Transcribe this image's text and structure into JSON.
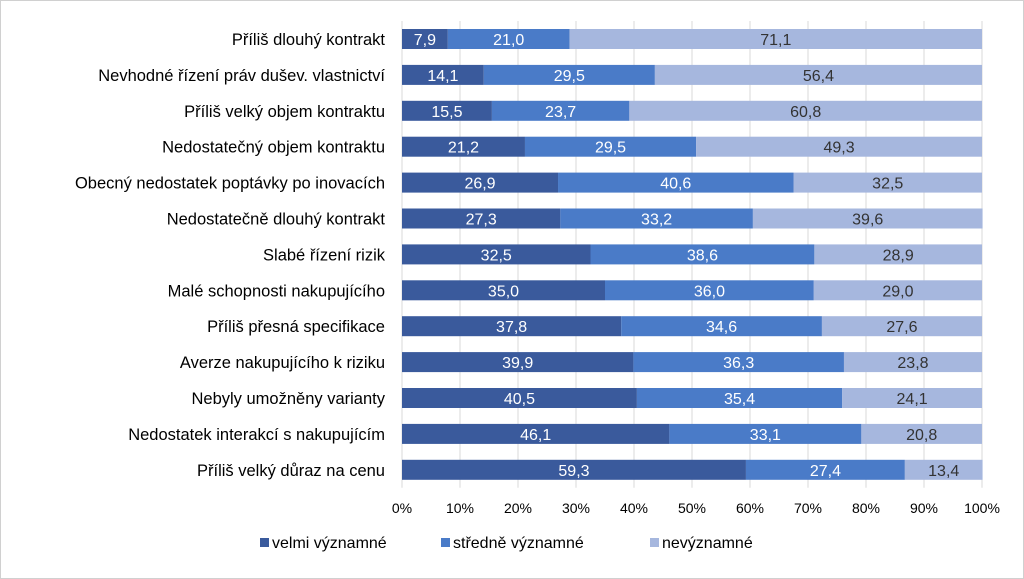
{
  "chart_data": {
    "type": "bar",
    "orientation": "horizontal",
    "stacked": true,
    "categories": [
      "Příliš dlouhý kontrakt",
      "Nevhodné řízení práv dušev. vlastnictví",
      "Příliš velký objem kontraktu",
      "Nedostatečný objem kontraktu",
      "Obecný nedostatek poptávky po inovacích",
      "Nedostatečně dlouhý kontrakt",
      "Slabé řízení rizik",
      "Malé schopnosti nakupujícího",
      "Příliš přesná specifikace",
      "Averze nakupujícího k riziku",
      "Nebyly umožněny varianty",
      "Nedostatek interakcí s nakupujícím",
      "Příliš velký důraz na cenu"
    ],
    "series": [
      {
        "name": "velmi významné",
        "color": "#3a5a9c",
        "values": [
          7.9,
          14.1,
          15.5,
          21.2,
          26.9,
          27.3,
          32.5,
          35.0,
          37.8,
          39.9,
          40.5,
          46.1,
          59.3
        ],
        "labels": [
          "7,9",
          "14,1",
          "15,5",
          "21,2",
          "26,9",
          "27,3",
          "32,5",
          "35,0",
          "37,8",
          "39,9",
          "40,5",
          "46,1",
          "59,3"
        ]
      },
      {
        "name": "středně významné",
        "color": "#4a7bc8",
        "values": [
          21.0,
          29.5,
          23.7,
          29.5,
          40.6,
          33.2,
          38.6,
          36.0,
          34.6,
          36.3,
          35.4,
          33.1,
          27.4
        ],
        "labels": [
          "21,0",
          "29,5",
          "23,7",
          "29,5",
          "40,6",
          "33,2",
          "38,6",
          "36,0",
          "34,6",
          "36,3",
          "35,4",
          "33,1",
          "27,4"
        ]
      },
      {
        "name": "nevýznamné",
        "color": "#a6b7de",
        "values": [
          71.1,
          56.4,
          60.8,
          49.3,
          32.5,
          39.6,
          28.9,
          29.0,
          27.6,
          23.8,
          24.1,
          20.8,
          13.4
        ],
        "labels": [
          "71,1",
          "56,4",
          "60,8",
          "49,3",
          "32,5",
          "39,6",
          "28,9",
          "29,0",
          "27,6",
          "23,8",
          "24,1",
          "20,8",
          "13,4"
        ]
      }
    ],
    "x_ticks": [
      "0%",
      "10%",
      "20%",
      "30%",
      "40%",
      "50%",
      "60%",
      "70%",
      "80%",
      "90%",
      "100%"
    ],
    "xlim": [
      0,
      100
    ],
    "grid": true,
    "legend_position": "bottom"
  }
}
